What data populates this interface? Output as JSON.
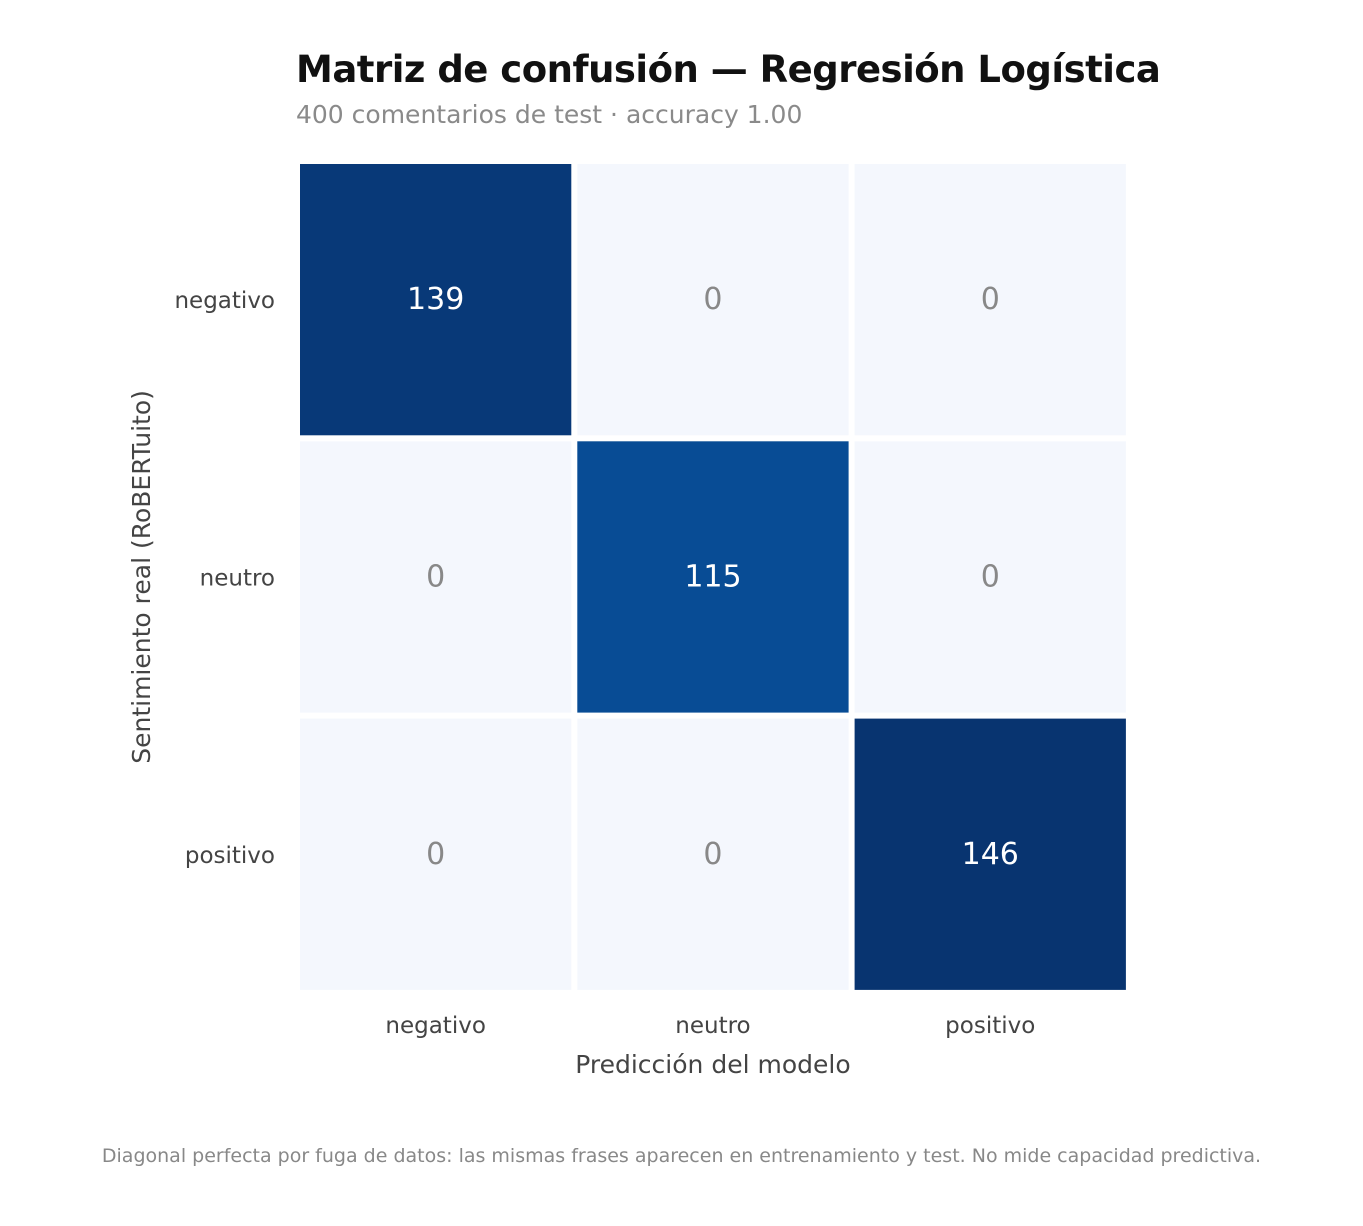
{
  "chart_data": {
    "type": "heatmap",
    "title": "Matriz de confusión — Regresión Logística",
    "subtitle": "400 comentarios de test · accuracy 1.00",
    "xlabel": "Predicción del modelo",
    "ylabel": "Sentimiento real (RoBERTuito)",
    "x_categories": [
      "negativo",
      "neutro",
      "positivo"
    ],
    "y_categories": [
      "negativo",
      "neutro",
      "positivo"
    ],
    "values": [
      [
        139,
        0,
        0
      ],
      [
        0,
        115,
        0
      ],
      [
        0,
        0,
        146
      ]
    ],
    "colormap": "Blues",
    "colors": {
      "low": "#f4f7fd",
      "high": "#0d326a",
      "mid": "#1d58a6",
      "text_dark_cell": "#ffffff",
      "text_light_cell": "#888888"
    },
    "note": "Diagonal perfecta por fuga de datos: las mismas frases aparecen en entrenamiento y test. No mide capacidad predictiva."
  }
}
